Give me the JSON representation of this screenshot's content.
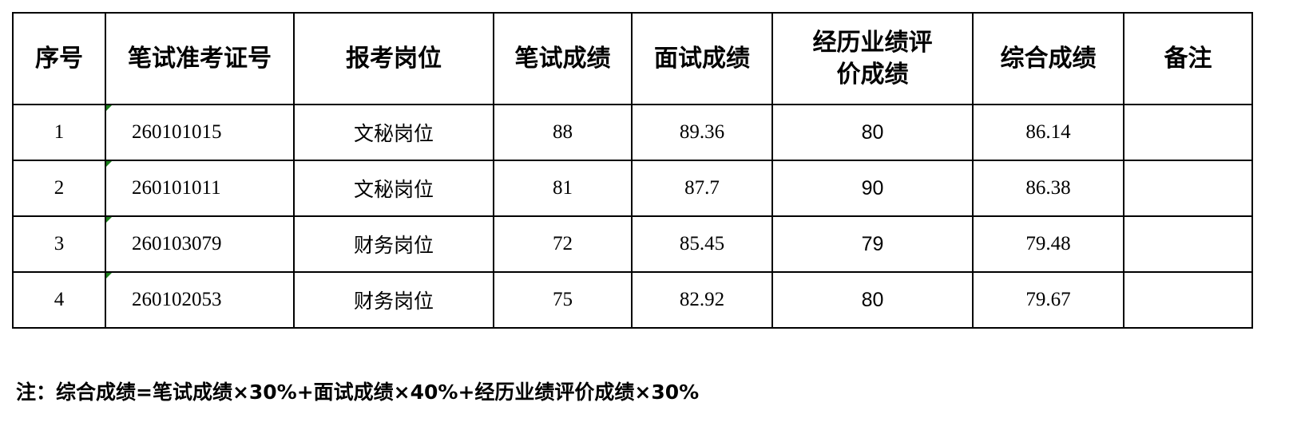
{
  "table": {
    "headers": [
      "序号",
      "笔试准考证号",
      "报考岗位",
      "笔试成绩",
      "面试成绩",
      "经历业绩评价成绩",
      "综合成绩",
      "备注"
    ],
    "rows": [
      {
        "no": "1",
        "id": "260101015",
        "position": "文秘岗位",
        "written": "88",
        "interview": "89.36",
        "experience": "80",
        "total": "86.14",
        "remark": ""
      },
      {
        "no": "2",
        "id": "260101011",
        "position": "文秘岗位",
        "written": "81",
        "interview": "87.7",
        "experience": "90",
        "total": "86.38",
        "remark": ""
      },
      {
        "no": "3",
        "id": "260103079",
        "position": "财务岗位",
        "written": "72",
        "interview": "85.45",
        "experience": "79",
        "total": "79.48",
        "remark": ""
      },
      {
        "no": "4",
        "id": "260102053",
        "position": "财务岗位",
        "written": "75",
        "interview": "82.92",
        "experience": "80",
        "total": "79.67",
        "remark": ""
      }
    ]
  },
  "note": "注：综合成绩=笔试成绩×30%+面试成绩×40%+经历业绩评价成绩×30%",
  "colors": {
    "border": "#000000",
    "cell_marker": "#1a7f1a"
  }
}
